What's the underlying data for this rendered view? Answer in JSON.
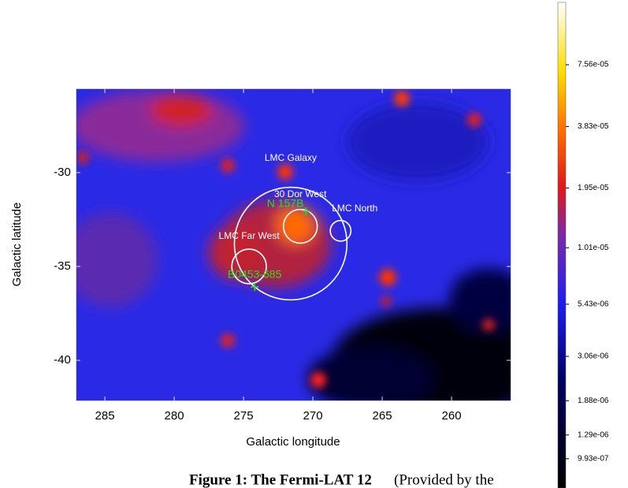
{
  "chart_data": {
    "type": "heatmap",
    "xlabel": "Galactic longitude",
    "ylabel": "Galactic latitude",
    "xlim": [
      287.05,
      255.74
    ],
    "ylim": [
      -42.14,
      -25.55
    ],
    "xticks": [
      285,
      280,
      275,
      270,
      265,
      260
    ],
    "yticks": [
      -30,
      -35,
      -40
    ],
    "colorbar": {
      "scale": "log",
      "lim": [
        7.2e-07,
        0.00015
      ],
      "ticks": [
        {
          "value": 7.56e-05,
          "label": "7.56e-05"
        },
        {
          "value": 3.83e-05,
          "label": "3.83e-05"
        },
        {
          "value": 1.95e-05,
          "label": "1.95e-05"
        },
        {
          "value": 1.01e-05,
          "label": "1.01e-05"
        },
        {
          "value": 5.43e-06,
          "label": "5.43e-06"
        },
        {
          "value": 3.06e-06,
          "label": "3.06e-06"
        },
        {
          "value": 1.88e-06,
          "label": "1.88e-06"
        },
        {
          "value": 1.29e-06,
          "label": "1.29e-06"
        },
        {
          "value": 9.93e-07,
          "label": "9.93e-07"
        }
      ]
    },
    "regions": [
      {
        "name": "LMC Galaxy",
        "lon": 271.6,
        "lat": -33.78,
        "radius": 3.0
      },
      {
        "name": "30 Dor West",
        "lon": 270.9,
        "lat": -32.86,
        "radius": 0.9
      },
      {
        "name": "LMC North",
        "lon": 268.0,
        "lat": -33.1,
        "radius": 0.55
      },
      {
        "name": "LMC Far West",
        "lon": 274.6,
        "lat": -35.0,
        "radius": 0.92
      }
    ],
    "sources": [
      {
        "name": "N 157B",
        "lon": 270.51,
        "lat": -32.06,
        "color": "#22e022"
      },
      {
        "name": "B0453-685",
        "lon": 274.2,
        "lat": -36.09,
        "color": "#22e022"
      }
    ]
  },
  "caption_fragments": [
    "Figure 1: The Fermi-LAT 12",
    "(Provided by the"
  ]
}
